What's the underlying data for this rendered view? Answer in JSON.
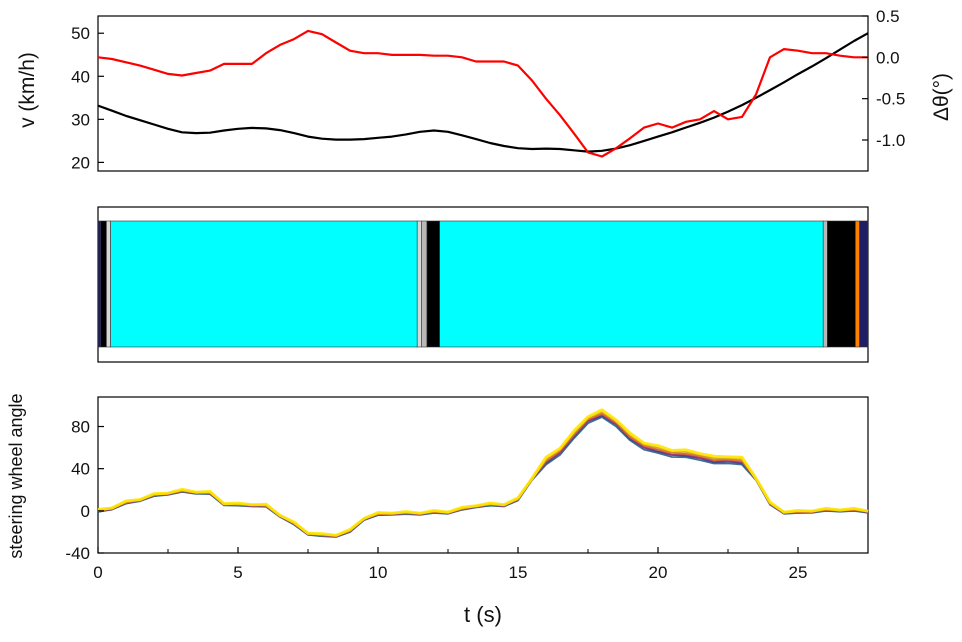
{
  "chart_data": [
    {
      "id": "velocity_angle",
      "type": "line",
      "x_range": [
        0,
        27.5
      ],
      "y_range": [
        18,
        54
      ],
      "y2_range": [
        -1.375,
        0.5
      ],
      "ylabel": "v (km/h)",
      "y2label": "Δθ(°)",
      "y_ticks": [
        20,
        30,
        40,
        50
      ],
      "y2_ticks": [
        0.5,
        0.0,
        -0.5,
        -1.0
      ],
      "y2_tick_labels": [
        "0.5",
        "0.0",
        "-0.5",
        "-1.0"
      ],
      "series": [
        {
          "axis": "left",
          "color": "#000000",
          "x": [
            0,
            0.5,
            1,
            1.5,
            2,
            2.5,
            3,
            3.5,
            4,
            4.5,
            5,
            5.5,
            6,
            6.5,
            7,
            7.5,
            8,
            8.5,
            9,
            9.5,
            10,
            10.5,
            11,
            11.5,
            12,
            12.5,
            13,
            13.5,
            14,
            14.5,
            15,
            15.5,
            16,
            16.5,
            17,
            17.5,
            18,
            18.5,
            19,
            19.5,
            20,
            20.5,
            21,
            21.5,
            22,
            22.5,
            23,
            23.5,
            24,
            24.5,
            25,
            25.5,
            26,
            26.5,
            27,
            27.5
          ],
          "values": [
            33.2,
            32.0,
            30.8,
            29.8,
            28.8,
            27.8,
            27.0,
            26.8,
            26.9,
            27.4,
            27.8,
            28.0,
            27.9,
            27.5,
            26.8,
            26.0,
            25.5,
            25.3,
            25.3,
            25.4,
            25.7,
            26.0,
            26.5,
            27.1,
            27.4,
            27.1,
            26.3,
            25.4,
            24.5,
            23.8,
            23.3,
            23.1,
            23.2,
            23.1,
            22.8,
            22.5,
            22.7,
            23.2,
            24.0,
            25.0,
            26.0,
            27.0,
            28.1,
            29.2,
            30.4,
            31.8,
            33.3,
            35.0,
            36.8,
            38.6,
            40.5,
            42.3,
            44.2,
            46.2,
            48.2,
            50.0
          ]
        },
        {
          "axis": "right",
          "color": "#ff0000",
          "x": [
            0,
            0.5,
            1,
            1.5,
            2,
            2.5,
            3,
            3.5,
            4,
            4.5,
            5,
            5.5,
            6,
            6.5,
            7,
            7.5,
            8,
            8.5,
            9,
            9.5,
            10,
            10.5,
            11,
            11.5,
            12,
            12.5,
            13,
            13.5,
            14,
            14.5,
            15,
            15.5,
            16,
            16.5,
            17,
            17.5,
            18,
            18.5,
            19,
            19.5,
            20,
            20.5,
            21,
            21.5,
            22,
            22.5,
            23,
            23.5,
            24,
            24.5,
            25,
            25.5,
            26,
            26.5,
            27,
            27.5
          ],
          "values": [
            0.0,
            -0.02,
            -0.06,
            -0.1,
            -0.15,
            -0.2,
            -0.22,
            -0.19,
            -0.16,
            -0.08,
            -0.08,
            -0.08,
            0.05,
            0.15,
            0.22,
            0.32,
            0.28,
            0.18,
            0.08,
            0.05,
            0.05,
            0.03,
            0.03,
            0.03,
            0.02,
            0.02,
            0.0,
            -0.05,
            -0.05,
            -0.05,
            -0.1,
            -0.28,
            -0.5,
            -0.7,
            -0.92,
            -1.15,
            -1.2,
            -1.1,
            -0.98,
            -0.85,
            -0.8,
            -0.85,
            -0.78,
            -0.75,
            -0.65,
            -0.75,
            -0.72,
            -0.45,
            0.0,
            0.1,
            0.08,
            0.05,
            0.05,
            0.02,
            0.0,
            0.0
          ]
        }
      ]
    },
    {
      "id": "state_strip",
      "type": "heatmap",
      "x_range": [
        0,
        27.5
      ],
      "segments": [
        {
          "from": 0.0,
          "to": 0.1,
          "color": "#1e1e64"
        },
        {
          "from": 0.1,
          "to": 0.3,
          "color": "#000000"
        },
        {
          "from": 0.3,
          "to": 0.45,
          "color": "#d8d8d8"
        },
        {
          "from": 0.45,
          "to": 11.4,
          "color": "#00ffff"
        },
        {
          "from": 11.4,
          "to": 11.55,
          "color": "#d8d8d8"
        },
        {
          "from": 11.55,
          "to": 11.75,
          "color": "#b8b8b8"
        },
        {
          "from": 11.75,
          "to": 12.2,
          "color": "#000000"
        },
        {
          "from": 12.2,
          "to": 25.9,
          "color": "#00ffff"
        },
        {
          "from": 25.9,
          "to": 26.05,
          "color": "#b8b8b8"
        },
        {
          "from": 26.05,
          "to": 27.05,
          "color": "#000000"
        },
        {
          "from": 27.05,
          "to": 27.2,
          "color": "#ff8000"
        },
        {
          "from": 27.2,
          "to": 27.5,
          "color": "#1e1e64"
        }
      ]
    },
    {
      "id": "steering",
      "type": "line",
      "x_range": [
        0,
        27.5
      ],
      "y_range": [
        -40,
        108
      ],
      "ylabel": "steering wheel angle",
      "xlabel": "t (s)",
      "x_ticks": [
        0,
        5,
        10,
        15,
        20,
        25
      ],
      "y_ticks": [
        -40,
        0,
        40,
        80
      ],
      "x": [
        0,
        0.5,
        1,
        1.5,
        2,
        2.5,
        3,
        3.5,
        4,
        4.5,
        5,
        5.5,
        6,
        6.5,
        7,
        7.5,
        8,
        8.5,
        9,
        9.5,
        10,
        10.5,
        11,
        11.5,
        12,
        12.5,
        13,
        13.5,
        14,
        14.5,
        15,
        15.5,
        16,
        16.5,
        17,
        17.5,
        18,
        18.5,
        19,
        19.5,
        20,
        20.5,
        21,
        21.5,
        22,
        22.5,
        23,
        23.5,
        24,
        24.5,
        25,
        25.5,
        26,
        26.5,
        27,
        27.5
      ],
      "values": [
        -1,
        2,
        7,
        10,
        14,
        16,
        18,
        17,
        16,
        6,
        5,
        5,
        4,
        -5,
        -13,
        -22,
        -24,
        -24,
        -20,
        -8,
        -4,
        -3,
        -3,
        -3,
        -2,
        -2,
        1,
        4,
        5,
        5,
        10,
        30,
        45,
        55,
        70,
        85,
        90,
        82,
        68,
        60,
        56,
        53,
        52,
        50,
        46,
        47,
        45,
        30,
        6,
        -2,
        -2,
        -1,
        0,
        0,
        0,
        -1
      ],
      "series": [
        {
          "color": "#3a2a86",
          "offset": 0
        },
        {
          "color": "#2a5f8a",
          "offset": -1.5
        },
        {
          "color": "#a83a6a",
          "offset": 1
        },
        {
          "color": "#e06a2a",
          "offset": 2
        },
        {
          "color": "#c8a01a",
          "offset": 3.5
        },
        {
          "color": "#ffe600",
          "offset": 5
        }
      ]
    }
  ]
}
